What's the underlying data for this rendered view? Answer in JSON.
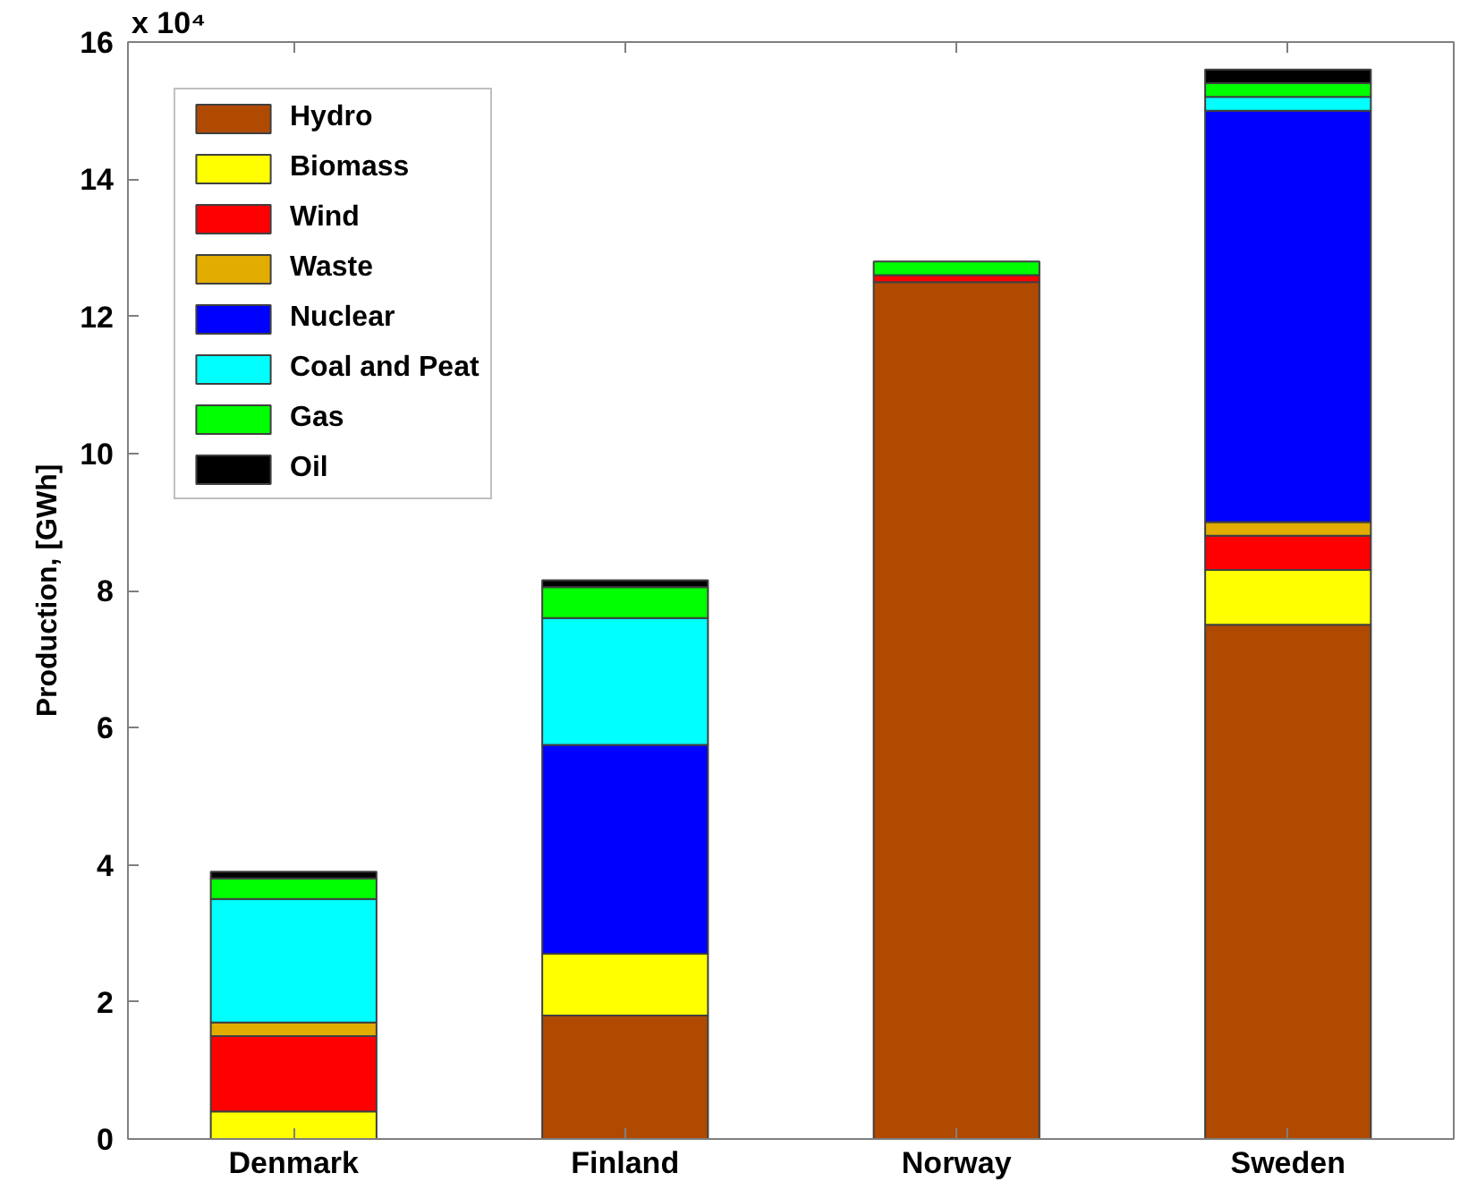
{
  "chart_data": {
    "type": "bar",
    "stacked": true,
    "ylabel": "Production, [GWh]",
    "annotations": [
      "x 10⁴"
    ],
    "categories": [
      "Denmark",
      "Finland",
      "Norway",
      "Sweden"
    ],
    "series": [
      {
        "name": "Hydro",
        "color": "#b04a00",
        "values": [
          0,
          1.8,
          12.5,
          7.5
        ]
      },
      {
        "name": "Biomass",
        "color": "#ffff00",
        "values": [
          0.4,
          0.9,
          0,
          0.8
        ]
      },
      {
        "name": "Wind",
        "color": "#ff0000",
        "values": [
          1.1,
          0,
          0.1,
          0.5
        ]
      },
      {
        "name": "Waste",
        "color": "#e2ad00",
        "values": [
          0.2,
          0,
          0,
          0.2
        ]
      },
      {
        "name": "Nuclear",
        "color": "#0000ff",
        "values": [
          0,
          3.05,
          0,
          6.0
        ]
      },
      {
        "name": "Coal and Peat",
        "color": "#00ffff",
        "values": [
          1.8,
          1.85,
          0,
          0.2
        ]
      },
      {
        "name": "Gas",
        "color": "#00ff00",
        "values": [
          0.3,
          0.45,
          0.2,
          0.2
        ]
      },
      {
        "name": "Oil",
        "color": "#000000",
        "values": [
          0.1,
          0.1,
          0,
          0.2
        ]
      }
    ],
    "ylim": [
      0,
      16
    ],
    "yticks": [
      0,
      2,
      4,
      6,
      8,
      10,
      12,
      14,
      16
    ],
    "legend": "top left",
    "grid": false
  }
}
